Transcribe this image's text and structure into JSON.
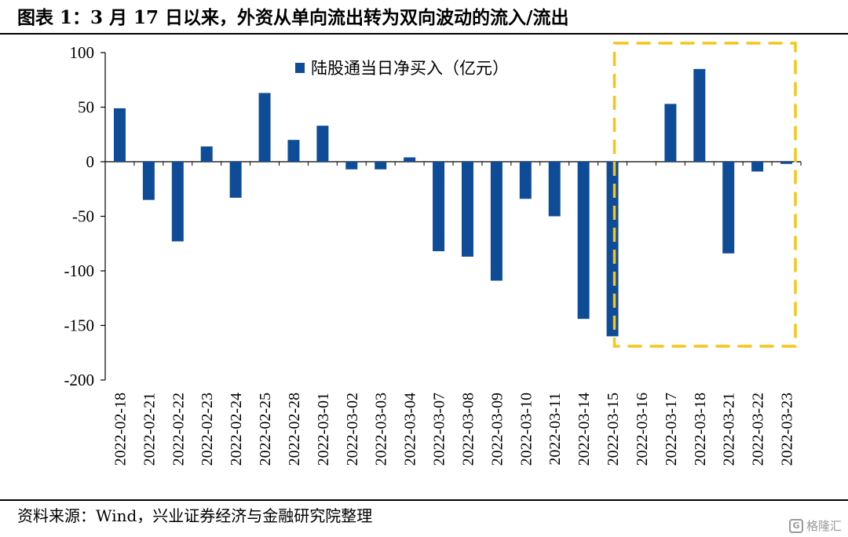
{
  "header": {
    "title": "图表 1：3 月 17 日以来，外资从单向流出转为双向波动的流入/流出"
  },
  "footer": {
    "source": "资料来源：Wind，兴业证券经济与金融研究院整理",
    "watermark": "格隆汇",
    "watermark_logo": "G"
  },
  "colors": {
    "bar": "#0F4C97",
    "highlight_box": "#F5C518",
    "axis": "#000000"
  },
  "chart_data": {
    "type": "bar",
    "categories": [
      "2022-02-18",
      "2022-02-21",
      "2022-02-22",
      "2022-02-23",
      "2022-02-24",
      "2022-02-25",
      "2022-02-28",
      "2022-03-01",
      "2022-03-02",
      "2022-03-03",
      "2022-03-04",
      "2022-03-07",
      "2022-03-08",
      "2022-03-09",
      "2022-03-10",
      "2022-03-11",
      "2022-03-14",
      "2022-03-15",
      "2022-03-16",
      "2022-03-17",
      "2022-03-18",
      "2022-03-21",
      "2022-03-22",
      "2022-03-23"
    ],
    "series": [
      {
        "name": "陆股通当日净买入（亿元）",
        "values": [
          49,
          -35,
          -73,
          14,
          -33,
          63,
          20,
          33,
          -7,
          -7,
          4,
          -82,
          -87,
          -109,
          -34,
          -50,
          -144,
          -160,
          0,
          53,
          85,
          -84,
          -9,
          -2
        ]
      }
    ],
    "ylim": [
      -200,
      100
    ],
    "yticks": [
      "100",
      "50",
      "0",
      "-50",
      "-100",
      "-150",
      "-200"
    ],
    "legend_position": "top-center",
    "grid": false,
    "highlight": {
      "from": "2022-03-16",
      "to": "2022-03-23",
      "style": "dashed box"
    }
  }
}
